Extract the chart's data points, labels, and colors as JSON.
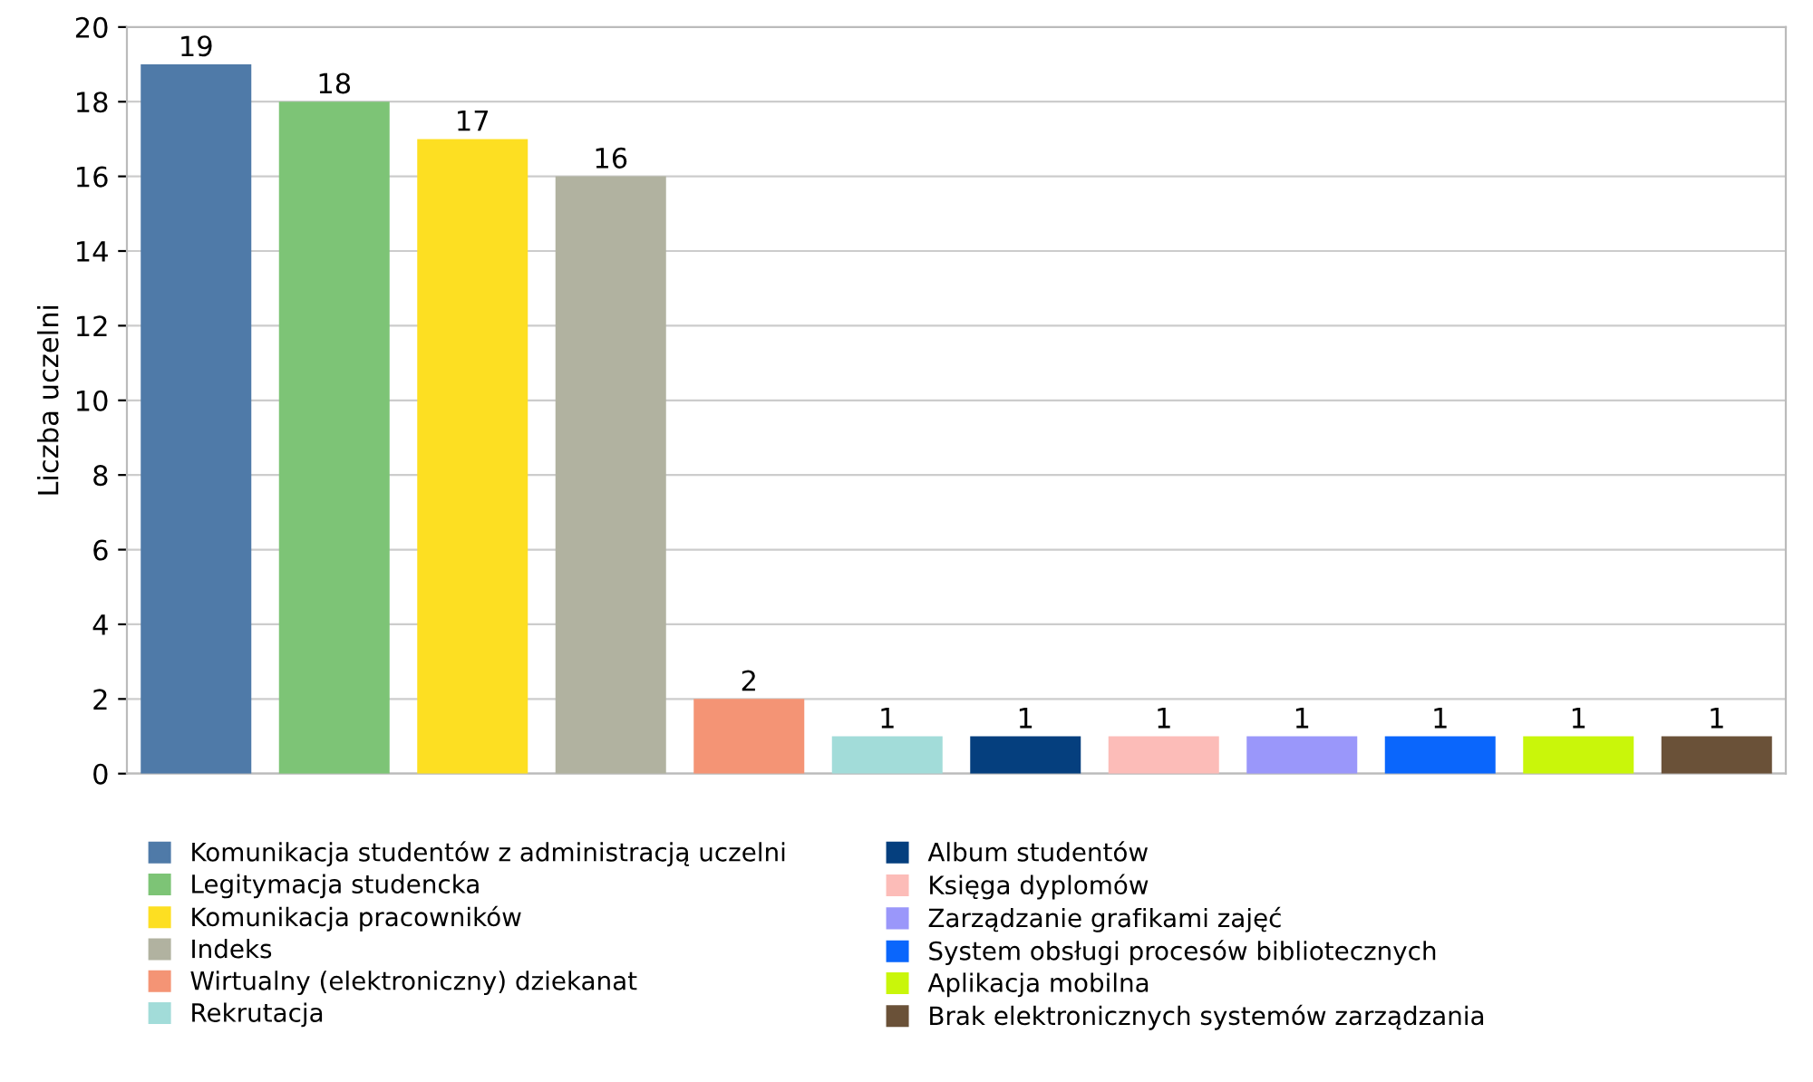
{
  "chart_data": {
    "type": "bar",
    "ylabel": "Liczba uczelni",
    "categories": [
      null,
      null,
      null,
      null,
      null,
      null,
      null,
      null,
      null,
      null,
      null,
      null
    ],
    "series": [
      {
        "name": "Komunikacja studentów z administracją uczelni",
        "color": "#4f7aa8",
        "values": [
          19,
          null,
          null,
          null,
          null,
          null,
          null,
          null,
          null,
          null,
          null,
          null
        ]
      },
      {
        "name": "Legitymacja studencka",
        "color": "#7dc476",
        "values": [
          null,
          18,
          null,
          null,
          null,
          null,
          null,
          null,
          null,
          null,
          null,
          null
        ]
      },
      {
        "name": "Komunikacja pracowników",
        "color": "#fddf22",
        "values": [
          null,
          null,
          17,
          null,
          null,
          null,
          null,
          null,
          null,
          null,
          null,
          null
        ]
      },
      {
        "name": "Indeks",
        "color": "#b1b2a0",
        "values": [
          null,
          null,
          null,
          16,
          null,
          null,
          null,
          null,
          null,
          null,
          null,
          null
        ]
      },
      {
        "name": "Wirtualny (elektroniczny) dziekanat",
        "color": "#f49475",
        "values": [
          null,
          null,
          null,
          null,
          2,
          null,
          null,
          null,
          null,
          null,
          null,
          null
        ]
      },
      {
        "name": "Rekrutacja",
        "color": "#a2dcd9",
        "values": [
          null,
          null,
          null,
          null,
          null,
          1,
          null,
          null,
          null,
          null,
          null,
          null
        ]
      },
      {
        "name": "Album studentów",
        "color": "#053f7e",
        "values": [
          null,
          null,
          null,
          null,
          null,
          null,
          1,
          null,
          null,
          null,
          null,
          null
        ]
      },
      {
        "name": "Księga dyplomów",
        "color": "#fcbcb8",
        "values": [
          null,
          null,
          null,
          null,
          null,
          null,
          null,
          1,
          null,
          null,
          null,
          null
        ]
      },
      {
        "name": "Zarządzanie grafikami zajęć",
        "color": "#9a97fa",
        "values": [
          null,
          null,
          null,
          null,
          null,
          null,
          null,
          null,
          1,
          null,
          null,
          null
        ]
      },
      {
        "name": "System obsługi procesów bibliotecznych",
        "color": "#0a66fc",
        "values": [
          null,
          null,
          null,
          null,
          null,
          null,
          null,
          null,
          null,
          1,
          null,
          null
        ]
      },
      {
        "name": "Aplikacja mobilna",
        "color": "#c9f60a",
        "values": [
          null,
          null,
          null,
          null,
          null,
          null,
          null,
          null,
          null,
          null,
          1,
          null
        ]
      },
      {
        "name": "Brak elektronicznych systemów zarządzania",
        "color": "#6a5138",
        "values": [
          null,
          null,
          null,
          null,
          null,
          null,
          null,
          null,
          null,
          null,
          null,
          1
        ]
      }
    ],
    "ylim": [
      0,
      20
    ],
    "yticks": [
      0,
      2,
      4,
      6,
      8,
      10,
      12,
      14,
      16,
      18,
      20
    ],
    "grid": "y",
    "data_labels": true,
    "legend": "bottom"
  }
}
